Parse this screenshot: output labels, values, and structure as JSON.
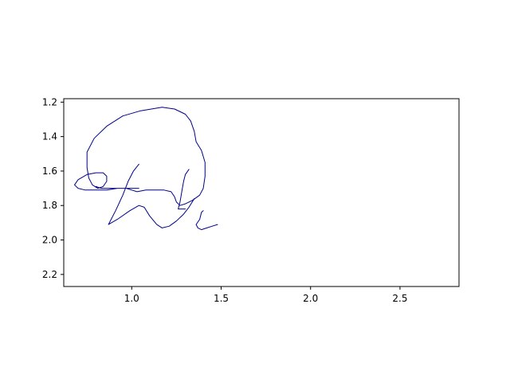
{
  "chart_data": {
    "type": "line",
    "title": "",
    "xlabel": "",
    "ylabel": "",
    "xlim": [
      0.62,
      2.83
    ],
    "ylim": [
      2.27,
      1.18
    ],
    "y_inverted": true,
    "grid": false,
    "legend": "none",
    "x_ticks": [
      1.0,
      1.5,
      2.0,
      2.5
    ],
    "x_tick_labels": [
      "1.0",
      "1.5",
      "2.0",
      "2.5"
    ],
    "y_ticks": [
      1.2,
      1.4,
      1.6,
      1.8,
      2.0,
      2.2
    ],
    "y_tick_labels": [
      "1.2",
      "1.4",
      "1.6",
      "1.8",
      "2.0",
      "2.2"
    ],
    "line_color": "#00008b",
    "strokes": [
      [
        [
          1.04,
          1.56
        ],
        [
          1.01,
          1.6
        ],
        [
          0.98,
          1.66
        ],
        [
          0.95,
          1.74
        ],
        [
          0.91,
          1.83
        ],
        [
          0.87,
          1.91
        ],
        [
          0.92,
          1.88
        ],
        [
          0.99,
          1.83
        ],
        [
          1.04,
          1.8
        ],
        [
          1.07,
          1.81
        ],
        [
          1.1,
          1.86
        ],
        [
          1.14,
          1.91
        ],
        [
          1.17,
          1.93
        ],
        [
          1.21,
          1.92
        ],
        [
          1.25,
          1.89
        ],
        [
          1.29,
          1.85
        ],
        [
          1.32,
          1.81
        ],
        [
          1.35,
          1.76
        ]
      ],
      [
        [
          1.04,
          1.7
        ],
        [
          0.98,
          1.7
        ],
        [
          0.92,
          1.7
        ],
        [
          0.86,
          1.71
        ],
        [
          0.8,
          1.71
        ],
        [
          0.74,
          1.71
        ],
        [
          0.7,
          1.7
        ],
        [
          0.68,
          1.68
        ],
        [
          0.7,
          1.65
        ],
        [
          0.75,
          1.62
        ],
        [
          0.8,
          1.61
        ],
        [
          0.84,
          1.61
        ],
        [
          0.86,
          1.63
        ],
        [
          0.86,
          1.66
        ],
        [
          0.84,
          1.69
        ],
        [
          0.81,
          1.7
        ],
        [
          0.78,
          1.68
        ],
        [
          0.76,
          1.64
        ],
        [
          0.75,
          1.58
        ],
        [
          0.75,
          1.49
        ],
        [
          0.79,
          1.41
        ],
        [
          0.86,
          1.34
        ],
        [
          0.95,
          1.28
        ],
        [
          1.05,
          1.25
        ],
        [
          1.17,
          1.23
        ],
        [
          1.24,
          1.24
        ],
        [
          1.3,
          1.27
        ],
        [
          1.33,
          1.31
        ],
        [
          1.35,
          1.37
        ],
        [
          1.36,
          1.43
        ],
        [
          1.39,
          1.48
        ],
        [
          1.41,
          1.55
        ],
        [
          1.41,
          1.63
        ],
        [
          1.4,
          1.7
        ],
        [
          1.38,
          1.74
        ],
        [
          1.34,
          1.77
        ],
        [
          1.3,
          1.79
        ],
        [
          1.27,
          1.8
        ],
        [
          1.25,
          1.78
        ],
        [
          1.24,
          1.75
        ],
        [
          1.22,
          1.72
        ],
        [
          1.18,
          1.71
        ],
        [
          1.13,
          1.71
        ],
        [
          1.08,
          1.71
        ],
        [
          1.03,
          1.72
        ],
        [
          1.0,
          1.71
        ],
        [
          0.97,
          1.7
        ],
        [
          0.93,
          1.7
        ],
        [
          0.88,
          1.7
        ],
        [
          0.83,
          1.7
        ],
        [
          0.8,
          1.69
        ]
      ],
      [
        [
          1.32,
          1.59
        ],
        [
          1.3,
          1.62
        ],
        [
          1.29,
          1.66
        ],
        [
          1.28,
          1.72
        ],
        [
          1.27,
          1.78
        ],
        [
          1.26,
          1.82
        ],
        [
          1.28,
          1.82
        ],
        [
          1.3,
          1.82
        ]
      ],
      [
        [
          1.4,
          1.83
        ],
        [
          1.39,
          1.84
        ],
        [
          1.38,
          1.88
        ],
        [
          1.36,
          1.91
        ],
        [
          1.37,
          1.93
        ],
        [
          1.39,
          1.94
        ],
        [
          1.42,
          1.93
        ],
        [
          1.45,
          1.92
        ],
        [
          1.48,
          1.91
        ]
      ]
    ]
  }
}
